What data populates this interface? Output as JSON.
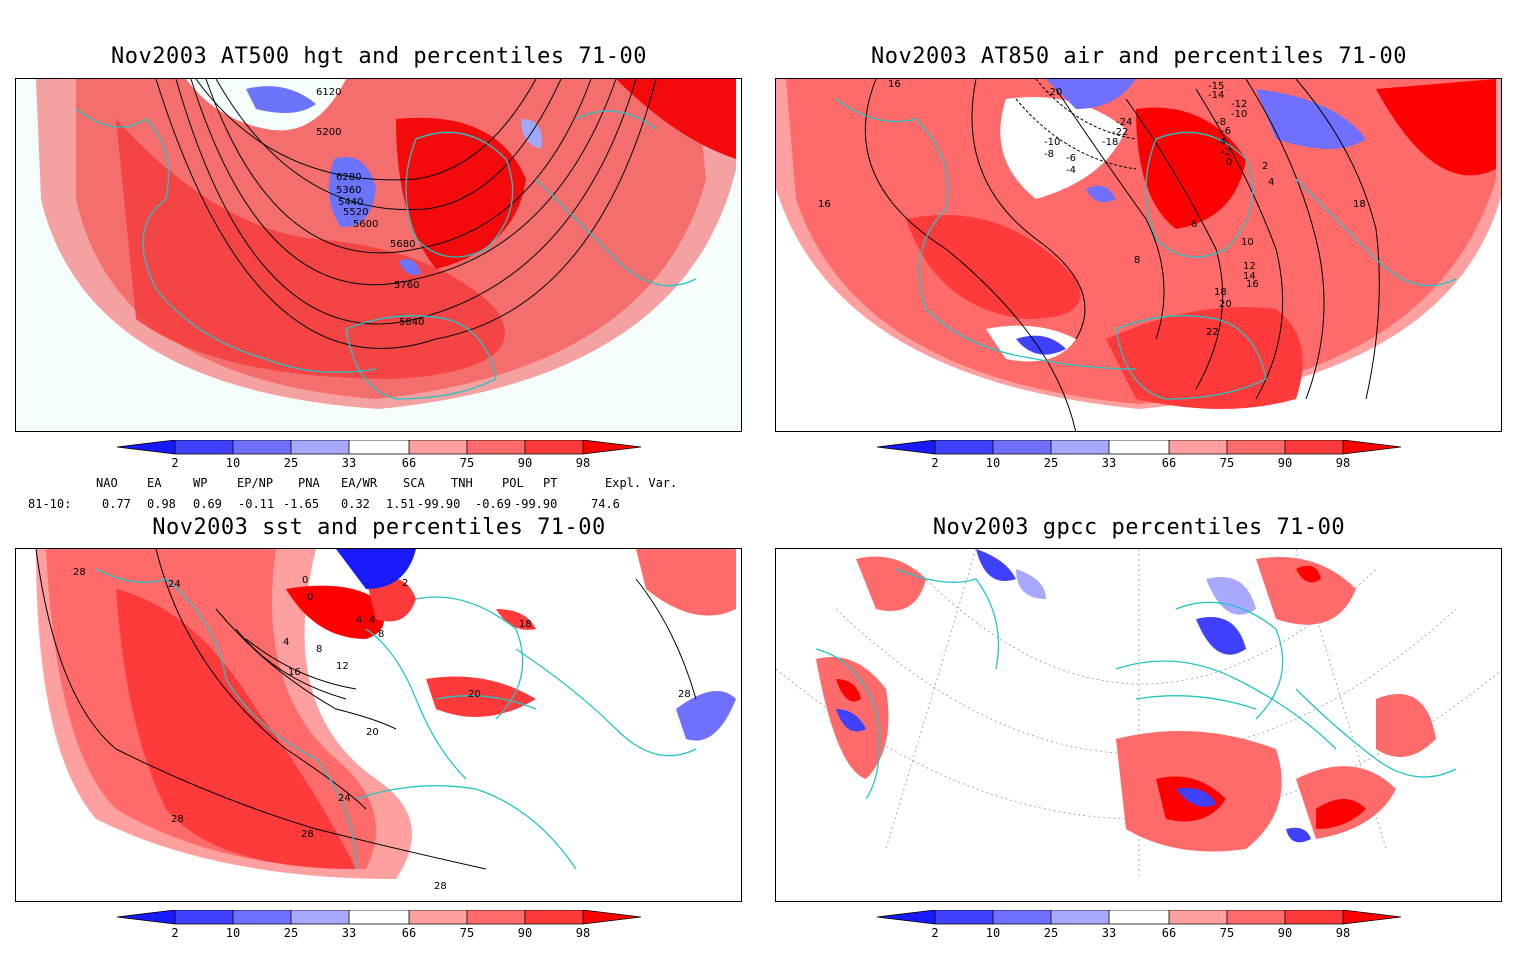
{
  "panels": [
    {
      "title": "Nov2003 AT500 hgt and percentiles 71-00",
      "contour_labels": [
        "6120",
        "5200",
        "6280",
        "5360",
        "5440",
        "5520",
        "5600",
        "5680",
        "5760",
        "5840"
      ]
    },
    {
      "title": "Nov2003 AT850 air and percentiles 71-00",
      "contour_labels": [
        "16",
        "-20",
        "-15",
        "-14",
        "-12",
        "-10",
        "-8",
        "-24",
        "-22",
        "-18",
        "-6",
        "-4",
        "-2",
        "0",
        "2",
        "4",
        "6",
        "8",
        "10",
        "12",
        "14",
        "16",
        "18",
        "20",
        "22",
        "18",
        "16",
        "-10",
        "-8",
        "-6",
        "-4"
      ]
    },
    {
      "title": "Nov2003 sst and percentiles 71-00",
      "contour_labels": [
        "28",
        "24",
        "0",
        "0",
        "2",
        "4",
        "4",
        "8",
        "8",
        "12",
        "16",
        "18",
        "20",
        "20",
        "24",
        "28",
        "28",
        "28",
        "4",
        "28"
      ]
    },
    {
      "title": "Nov2003 gpcc percentiles 71-00",
      "contour_labels": []
    }
  ],
  "colorbar": {
    "ticks": [
      "2",
      "10",
      "25",
      "33",
      "66",
      "75",
      "90",
      "98"
    ],
    "colors": {
      "deep_blue": "#1a1aff",
      "blue": "#4040ff",
      "mid_blue": "#7070ff",
      "light_blue": "#a8a8ff",
      "white": "#ffffff",
      "light_red": "#ffa0a0",
      "mid_red": "#ff6a6a",
      "red": "#ff3a3a",
      "deep_red": "#ff0000"
    }
  },
  "indices": {
    "headers": [
      "NAO",
      "EA",
      "WP",
      "EP/NP",
      "PNA",
      "EA/WR",
      "SCA",
      "TNH",
      "POL",
      "PT",
      "Expl. Var."
    ],
    "row_label": "81-10:",
    "values": [
      "0.77",
      "0.98",
      "0.69",
      "-0.11",
      "-1.65",
      "0.32",
      "1.51",
      "-99.90",
      "-0.69",
      "-99.90",
      "74.6"
    ]
  },
  "map_colors": {
    "coast": "#27c3c3",
    "contour": "#000000",
    "frame": "#000000"
  }
}
